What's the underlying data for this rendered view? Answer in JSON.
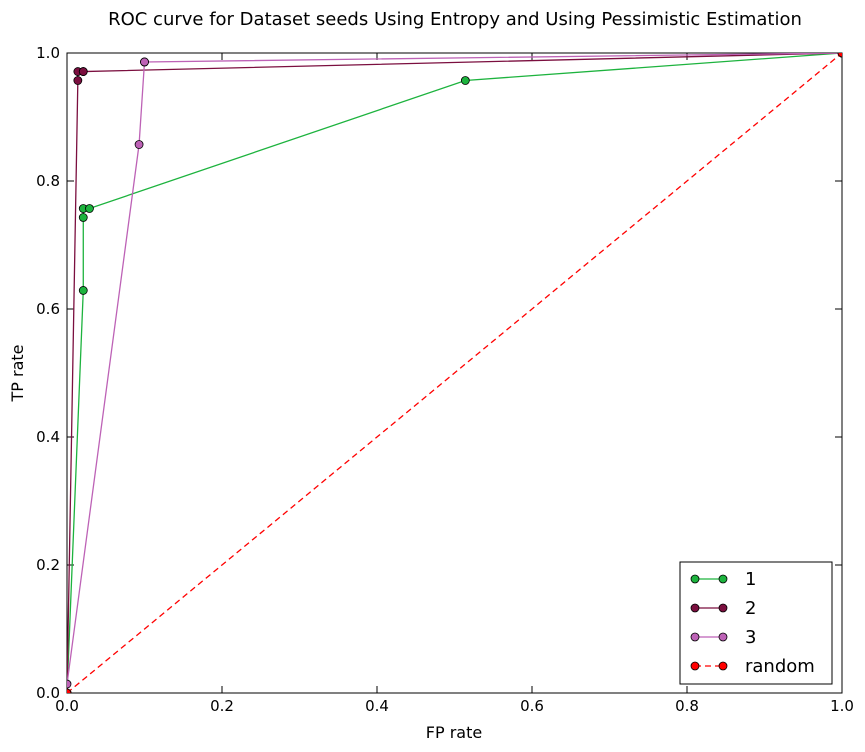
{
  "chart_data": {
    "type": "line",
    "title": "ROC curve for Dataset seeds Using Entropy and Using Pessimistic Estimation",
    "xlabel": "FP rate",
    "ylabel": "TP rate",
    "xlim": [
      0.0,
      1.0
    ],
    "ylim": [
      0.0,
      1.0
    ],
    "xticks": [
      "0.0",
      "0.2",
      "0.4",
      "0.6",
      "0.8",
      "1.0"
    ],
    "yticks": [
      "0.0",
      "0.2",
      "0.4",
      "0.6",
      "0.8",
      "1.0"
    ],
    "grid": false,
    "legend_position": "lower-right",
    "series": [
      {
        "name": "1",
        "color": "#1db33e",
        "dashed": false,
        "points": [
          [
            0.0,
            0.0
          ],
          [
            0.021,
            0.629
          ],
          [
            0.021,
            0.743
          ],
          [
            0.021,
            0.757
          ],
          [
            0.029,
            0.757
          ],
          [
            0.514,
            0.957
          ],
          [
            1.0,
            1.0
          ]
        ]
      },
      {
        "name": "2",
        "color": "#7b0f3f",
        "dashed": false,
        "points": [
          [
            0.0,
            0.0
          ],
          [
            0.014,
            0.957
          ],
          [
            0.014,
            0.971
          ],
          [
            0.021,
            0.971
          ],
          [
            0.021,
            0.971
          ],
          [
            1.0,
            1.0
          ]
        ]
      },
      {
        "name": "3",
        "color": "#bd62b6",
        "dashed": false,
        "points": [
          [
            0.0,
            0.014
          ],
          [
            0.093,
            0.857
          ],
          [
            0.1,
            0.986
          ],
          [
            0.1,
            0.986
          ],
          [
            1.0,
            1.0
          ]
        ]
      },
      {
        "name": "random",
        "color": "#ff0000",
        "dashed": true,
        "points": [
          [
            0.0,
            0.0
          ],
          [
            1.0,
            1.0
          ]
        ]
      }
    ]
  }
}
